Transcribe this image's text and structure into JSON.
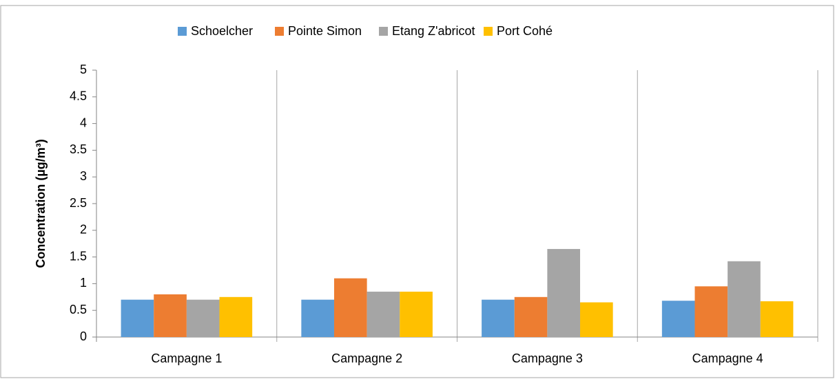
{
  "chart_data": {
    "type": "bar",
    "y_label": "Concentration (µg/m³)",
    "categories": [
      "Campagne 1",
      "Campagne 2",
      "Campagne 3",
      "Campagne 4"
    ],
    "series": [
      {
        "name": "Schoelcher",
        "color": "#5b9bd5",
        "values": [
          0.7,
          0.7,
          0.7,
          0.68
        ]
      },
      {
        "name": "Pointe Simon",
        "color": "#ed7d31",
        "values": [
          0.8,
          1.1,
          0.75,
          0.95
        ]
      },
      {
        "name": "Etang Z'abricot",
        "color": "#a5a5a5",
        "values": [
          0.7,
          0.85,
          1.65,
          1.42
        ]
      },
      {
        "name": "Port Cohé",
        "color": "#ffc000",
        "values": [
          0.75,
          0.85,
          0.65,
          0.67
        ]
      }
    ],
    "ylim": [
      0,
      5
    ],
    "yticks": [
      0,
      0.5,
      1,
      1.5,
      2,
      2.5,
      3,
      3.5,
      4,
      4.5,
      5
    ],
    "legend": "top"
  }
}
